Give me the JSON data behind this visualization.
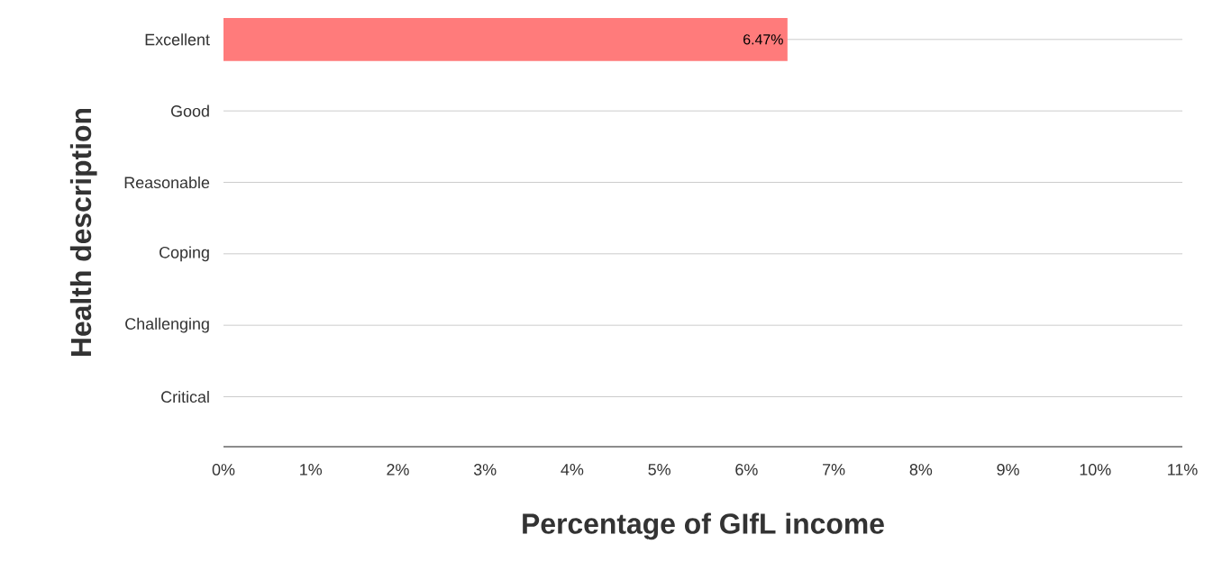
{
  "chart_data": {
    "type": "bar",
    "orientation": "horizontal",
    "xlabel": "Percentage of GIfL income",
    "ylabel": "Health description",
    "categories": [
      "Excellent",
      "Good",
      "Reasonable",
      "Coping",
      "Challenging",
      "Critical"
    ],
    "values": [
      6.47,
      null,
      null,
      null,
      null,
      null
    ],
    "value_labels": [
      "6.47%",
      null,
      null,
      null,
      null,
      null
    ],
    "color": "#ff7b7b",
    "xlim": [
      0,
      11
    ],
    "xticks": [
      {
        "value": 0,
        "label": "0%"
      },
      {
        "value": 1,
        "label": "1%"
      },
      {
        "value": 2,
        "label": "2%"
      },
      {
        "value": 3,
        "label": "3%"
      },
      {
        "value": 4,
        "label": "4%"
      },
      {
        "value": 5,
        "label": "5%"
      },
      {
        "value": 6,
        "label": "6%"
      },
      {
        "value": 7,
        "label": "7%"
      },
      {
        "value": 8,
        "label": "8%"
      },
      {
        "value": 9,
        "label": "9%"
      },
      {
        "value": 10,
        "label": "10%"
      },
      {
        "value": 11,
        "label": "11%"
      }
    ],
    "grid": "y"
  }
}
